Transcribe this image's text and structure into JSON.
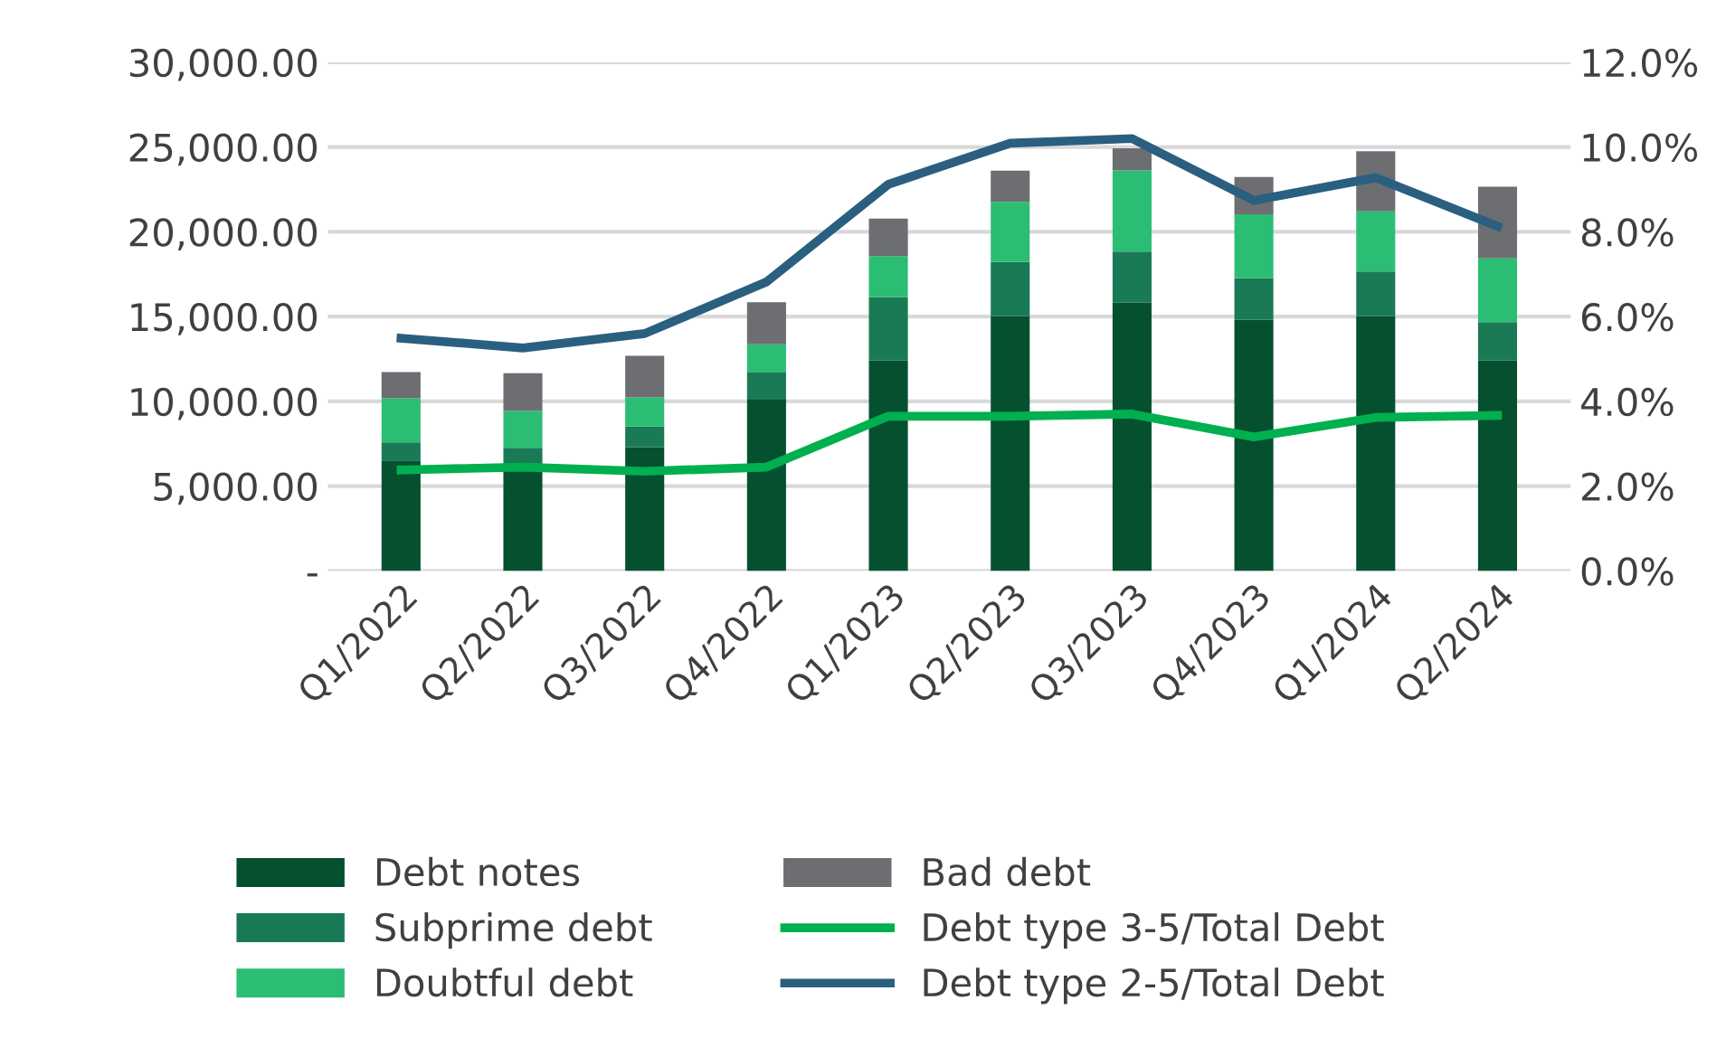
{
  "chart_data": {
    "type": "bar",
    "stacked": true,
    "categories": [
      "Q1/2022",
      "Q2/2022",
      "Q3/2022",
      "Q4/2022",
      "Q1/2023",
      "Q2/2023",
      "Q3/2023",
      "Q4/2023",
      "Q1/2024",
      "Q2/2024"
    ],
    "series": [
      {
        "name": "Debt notes",
        "color": "#04502f",
        "values": [
          6520,
          6060,
          7300,
          10100,
          12410,
          15030,
          15820,
          14820,
          15030,
          12410
        ]
      },
      {
        "name": "Subprime debt",
        "color": "#1a7a55",
        "values": [
          1060,
          1200,
          1210,
          1600,
          3740,
          3190,
          3010,
          2450,
          2630,
          2270
        ]
      },
      {
        "name": "Doubtful debt",
        "color": "#2bbd74",
        "values": [
          2600,
          2170,
          1730,
          1670,
          2420,
          3550,
          4790,
          3770,
          3550,
          3760
        ]
      },
      {
        "name": "Bad debt",
        "color": "#6d6e71",
        "values": [
          1550,
          2230,
          2450,
          2480,
          2210,
          1840,
          1310,
          2190,
          3550,
          4220
        ]
      },
      {
        "name": "Debt type 3-5/Total Debt",
        "type": "line",
        "axis": "y2",
        "color": "#00b050",
        "values": [
          2.38,
          2.45,
          2.35,
          2.45,
          3.65,
          3.65,
          3.7,
          3.16,
          3.62,
          3.67
        ]
      },
      {
        "name": "Debt type 2-5/Total Debt",
        "type": "line",
        "axis": "y2",
        "color": "#2a5f80",
        "values": [
          5.49,
          5.26,
          5.6,
          6.82,
          9.12,
          10.09,
          10.2,
          8.74,
          9.28,
          8.13
        ]
      }
    ],
    "ylim": [
      0,
      30000
    ],
    "yticks": [
      {
        "value": 0,
        "label": "-"
      },
      {
        "value": 5000,
        "label": "5,000.00"
      },
      {
        "value": 10000,
        "label": "10,000.00"
      },
      {
        "value": 15000,
        "label": "15,000.00"
      },
      {
        "value": 20000,
        "label": "20,000.00"
      },
      {
        "value": 25000,
        "label": "25,000.00"
      },
      {
        "value": 30000,
        "label": "30,000.00"
      }
    ],
    "y2lim": [
      0,
      12
    ],
    "y2ticks": [
      {
        "value": 0,
        "label": "0.0%"
      },
      {
        "value": 2,
        "label": "2.0%"
      },
      {
        "value": 4,
        "label": "4.0%"
      },
      {
        "value": 6,
        "label": "6.0%"
      },
      {
        "value": 8,
        "label": "8.0%"
      },
      {
        "value": 10,
        "label": "10.0%"
      },
      {
        "value": 12,
        "label": "12.0%"
      }
    ],
    "grid": "y",
    "legend": "bottom",
    "marker": "none",
    "line_style": "solid"
  }
}
